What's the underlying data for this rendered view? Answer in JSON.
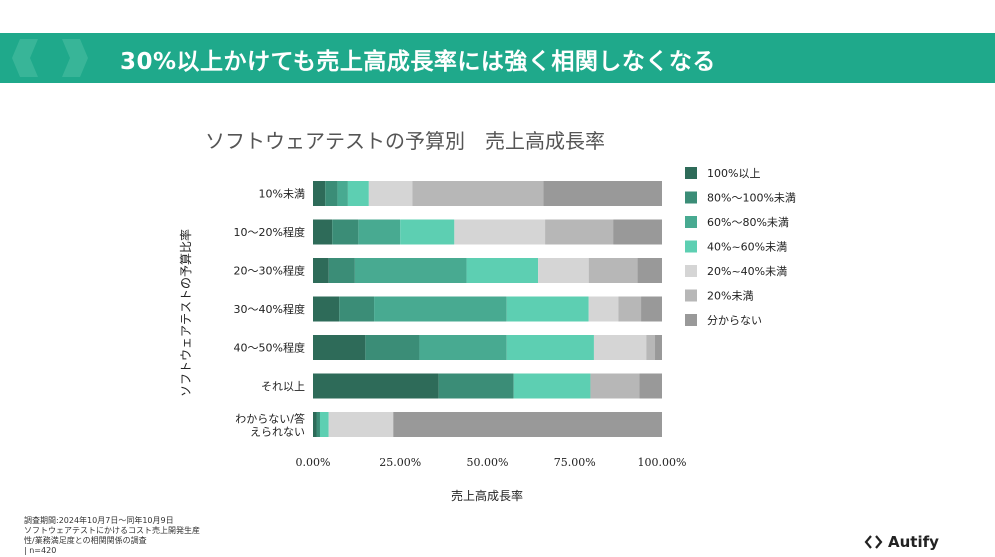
{
  "slide": {
    "title": "30%以上かけても売上高成長率には強く相関しなくなる",
    "footnote": [
      "調査期間:2024年10月7日～同年10月9日",
      "ソフトウェアテストにかけるコスト売上開発生産",
      "性/業務満足度との相関関係の調査",
      "| n=420"
    ],
    "logo_text": "Autify",
    "banner_color": "#1fa98b"
  },
  "chart_data": {
    "type": "bar",
    "orientation": "horizontal",
    "stacked": true,
    "percent_stacked": true,
    "title": "ソフトウェアテストの予算別　売上高成長率",
    "xlabel": "売上高成長率",
    "ylabel": "ソフトウェアテストの予算比率",
    "xlim": [
      0,
      1
    ],
    "xticks": [
      "0.00%",
      "25.00%",
      "50.00%",
      "75.00%",
      "100.00%"
    ],
    "categories": [
      "10%未満",
      "10～20%程度",
      "20～30%程度",
      "30～40%程度",
      "40～50%程度",
      "それ以上",
      "わからない/答えられない"
    ],
    "legend_position": "right",
    "grid": false,
    "series": [
      {
        "name": "100%以上",
        "color": "#2e6b59",
        "values": [
          0.035,
          0.055,
          0.045,
          0.075,
          0.15,
          0.36,
          0.01
        ]
      },
      {
        "name": "80%～100%未満",
        "color": "#3b8d77",
        "values": [
          0.035,
          0.075,
          0.075,
          0.1,
          0.155,
          0.215,
          0.01
        ]
      },
      {
        "name": "60%～80%未満",
        "color": "#48aa91",
        "values": [
          0.03,
          0.12,
          0.32,
          0.38,
          0.25,
          0.0,
          0.0
        ]
      },
      {
        "name": "40%~60%未満",
        "color": "#5dcfb2",
        "values": [
          0.06,
          0.155,
          0.205,
          0.235,
          0.25,
          0.22,
          0.025
        ]
      },
      {
        "name": "20%~40%未満",
        "color": "#d5d5d5",
        "values": [
          0.125,
          0.26,
          0.145,
          0.085,
          0.15,
          0.0,
          0.185
        ]
      },
      {
        "name": "20%未満",
        "color": "#b7b7b7",
        "values": [
          0.375,
          0.195,
          0.14,
          0.065,
          0.025,
          0.14,
          0.0
        ]
      },
      {
        "name": "分からない",
        "color": "#999999",
        "values": [
          0.34,
          0.14,
          0.07,
          0.06,
          0.02,
          0.065,
          0.77
        ]
      }
    ]
  }
}
